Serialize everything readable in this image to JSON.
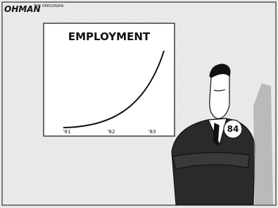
{
  "signature": "OHMAN",
  "credit": "THE OREGONIAN",
  "board": {
    "title": "EMPLOYMENT",
    "xlabels": [
      "'81",
      "'82",
      "'83"
    ]
  },
  "badge": "84"
}
